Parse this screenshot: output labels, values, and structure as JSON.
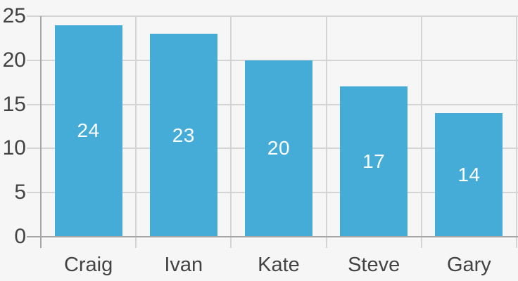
{
  "chart_data": {
    "type": "bar",
    "title": "",
    "xlabel": "",
    "ylabel": "",
    "categories": [
      "Craig",
      "Ivan",
      "Kate",
      "Steve",
      "Gary"
    ],
    "values": [
      24,
      23,
      20,
      17,
      14
    ],
    "bar_labels": [
      "24",
      "23",
      "20",
      "17",
      "14"
    ],
    "ylim": [
      0,
      25
    ],
    "yticks": [
      0,
      5,
      10,
      15,
      20,
      25
    ],
    "grid": true,
    "legend": "none",
    "colors": {
      "bar": "#45acd8",
      "background": "#f6f6f6",
      "gridline": "#d4d4d4",
      "axis_line": "#a6a6a6",
      "tick_label_text": "#434343",
      "bar_label_text": "#ffffff"
    }
  }
}
